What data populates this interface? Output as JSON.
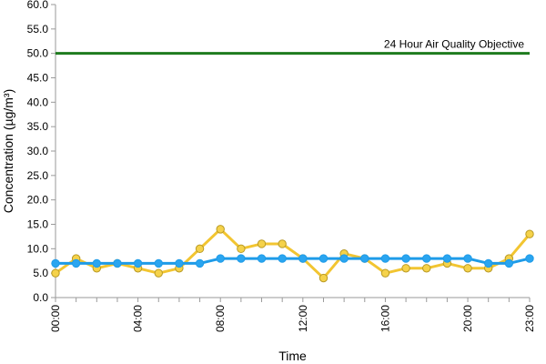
{
  "colors": {
    "objective": "#1e7b1e",
    "series_yellow": "#f2c531",
    "series_yellow_marker": "#f5d24a",
    "series_yellow_marker_stroke": "#b99a24",
    "series_blue": "#1e9be8",
    "series_blue_marker": "#2aa5f0",
    "axis": "#9a9a9a"
  },
  "chart_data": {
    "type": "line",
    "title": "",
    "xlabel": "Time",
    "ylabel": "Concentration (µg/m³)",
    "ylim": [
      0,
      60
    ],
    "y_ticks": [
      0,
      5,
      10,
      15,
      20,
      25,
      30,
      35,
      40,
      45,
      50,
      55,
      60
    ],
    "y_tick_labels": [
      "0.0",
      "5.0",
      "10.0",
      "15.0",
      "20.0",
      "25.0",
      "30.0",
      "35.0",
      "40.0",
      "45.0",
      "50.0",
      "55.0",
      "60.0"
    ],
    "x": [
      0,
      1,
      2,
      3,
      4,
      5,
      6,
      7,
      8,
      9,
      10,
      11,
      12,
      13,
      14,
      15,
      16,
      17,
      18,
      19,
      20,
      21,
      22,
      23
    ],
    "x_tick_positions": [
      0,
      4,
      8,
      12,
      16,
      20,
      23
    ],
    "x_tick_labels": [
      "00:00",
      "04:00",
      "08:00",
      "12:00",
      "16:00",
      "20:00",
      "23:00"
    ],
    "series": [
      {
        "color_key": "series_yellow",
        "values": [
          5,
          8,
          6,
          7,
          6,
          5,
          6,
          10,
          14,
          10,
          11,
          11,
          8,
          4,
          9,
          8,
          5,
          6,
          6,
          7,
          6,
          6,
          8,
          13
        ]
      },
      {
        "color_key": "series_blue",
        "values": [
          7,
          7,
          7,
          7,
          7,
          7,
          7,
          7,
          8,
          8,
          8,
          8,
          8,
          8,
          8,
          8,
          8,
          8,
          8,
          8,
          8,
          7,
          7,
          8
        ]
      }
    ],
    "objective_line": {
      "value": 50,
      "label": "24 Hour Air Quality Objective"
    },
    "grid": false,
    "legend": "none"
  }
}
